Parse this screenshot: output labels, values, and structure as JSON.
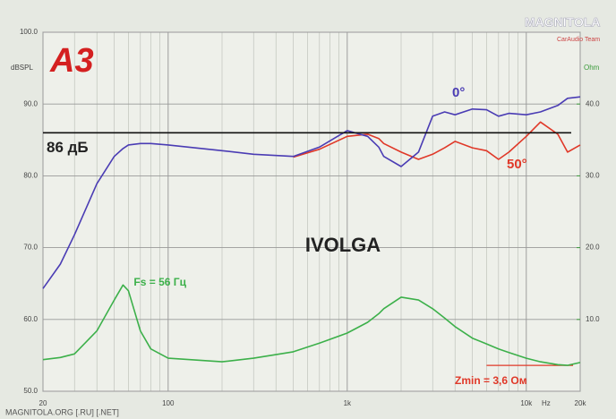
{
  "chart_data": {
    "type": "line",
    "title": "IVOLGA",
    "logo": "A3",
    "y_label": "dBSPL",
    "y2_label": "Ohm",
    "x_label": "Hz",
    "log_x": true,
    "grid": true,
    "xlim": [
      20,
      20000
    ],
    "xticks": [
      20,
      100,
      {
        "value": 1000,
        "label": "1k"
      },
      {
        "value": 10000,
        "label": "10k"
      },
      {
        "value": 20000,
        "label": "20k"
      }
    ],
    "ylim": [
      50,
      100
    ],
    "yticks": [
      {
        "value": 50,
        "label": "50.0"
      },
      {
        "value": 60,
        "label": "60.0"
      },
      {
        "value": 70,
        "label": "70.0"
      },
      {
        "value": 80,
        "label": "80.0"
      },
      {
        "value": 90,
        "label": "90.0"
      },
      {
        "value": 100,
        "label": "100.0"
      }
    ],
    "y2lim": [
      0,
      50
    ],
    "y2ticks": [
      {
        "value": 10,
        "label": "10.0"
      },
      {
        "value": 20,
        "label": "20.0"
      },
      {
        "value": 30,
        "label": "30.0"
      },
      {
        "value": 40,
        "label": "40.0"
      }
    ],
    "x": [
      20,
      25,
      30,
      40,
      50,
      56,
      60,
      70,
      80,
      100,
      200,
      300,
      500,
      700,
      1000,
      1300,
      1500,
      1600,
      2000,
      2500,
      3000,
      3500,
      4000,
      5000,
      6000,
      7000,
      8000,
      10000,
      12000,
      15000,
      17000,
      20000
    ],
    "series": [
      {
        "color": "#3cb04a",
        "axis": "y2",
        "values": [
          4.4,
          4.7,
          5.2,
          8.4,
          12.7,
          14.8,
          14,
          8.4,
          5.9,
          4.6,
          4.1,
          4.6,
          5.5,
          6.7,
          8.1,
          9.6,
          10.8,
          11.5,
          13.1,
          12.7,
          11.5,
          10.2,
          9,
          7.4,
          6.6,
          5.9,
          5.4,
          4.6,
          4.1,
          3.7,
          3.6,
          4
        ]
      },
      {
        "name": "50°",
        "color": "#e03828",
        "values": [
          null,
          null,
          null,
          null,
          null,
          null,
          null,
          null,
          null,
          null,
          null,
          null,
          82.6,
          83.7,
          85.5,
          85.8,
          85.2,
          84.5,
          83.3,
          82.3,
          83,
          83.9,
          84.8,
          83.9,
          83.5,
          82.3,
          83.3,
          85.5,
          87.5,
          85.8,
          83.3,
          84.3
        ]
      },
      {
        "name": "0°",
        "color": "#4a3cb4",
        "values": [
          64.3,
          67.7,
          71.8,
          78.9,
          82.7,
          83.8,
          84.3,
          84.5,
          84.5,
          84.3,
          83.5,
          83,
          82.7,
          84,
          86.3,
          85.5,
          84,
          82.7,
          81.3,
          83.3,
          88.3,
          88.9,
          88.5,
          89.3,
          89.2,
          88.3,
          88.7,
          88.5,
          88.9,
          89.8,
          90.8,
          91
        ]
      }
    ],
    "reference_line": {
      "value": 86,
      "label": "86 дБ"
    },
    "fs_annotation": {
      "value": 56,
      "label": "Fs = 56 Гц"
    },
    "zmin_line": {
      "value": 3.6,
      "label": "Zmin = 3,6 Ом"
    },
    "watermark": "MAGNITOLA",
    "watermark_sub": "CarAudio Team",
    "footer": "MAGNITOLA.ORG [.RU] [.NET]"
  }
}
